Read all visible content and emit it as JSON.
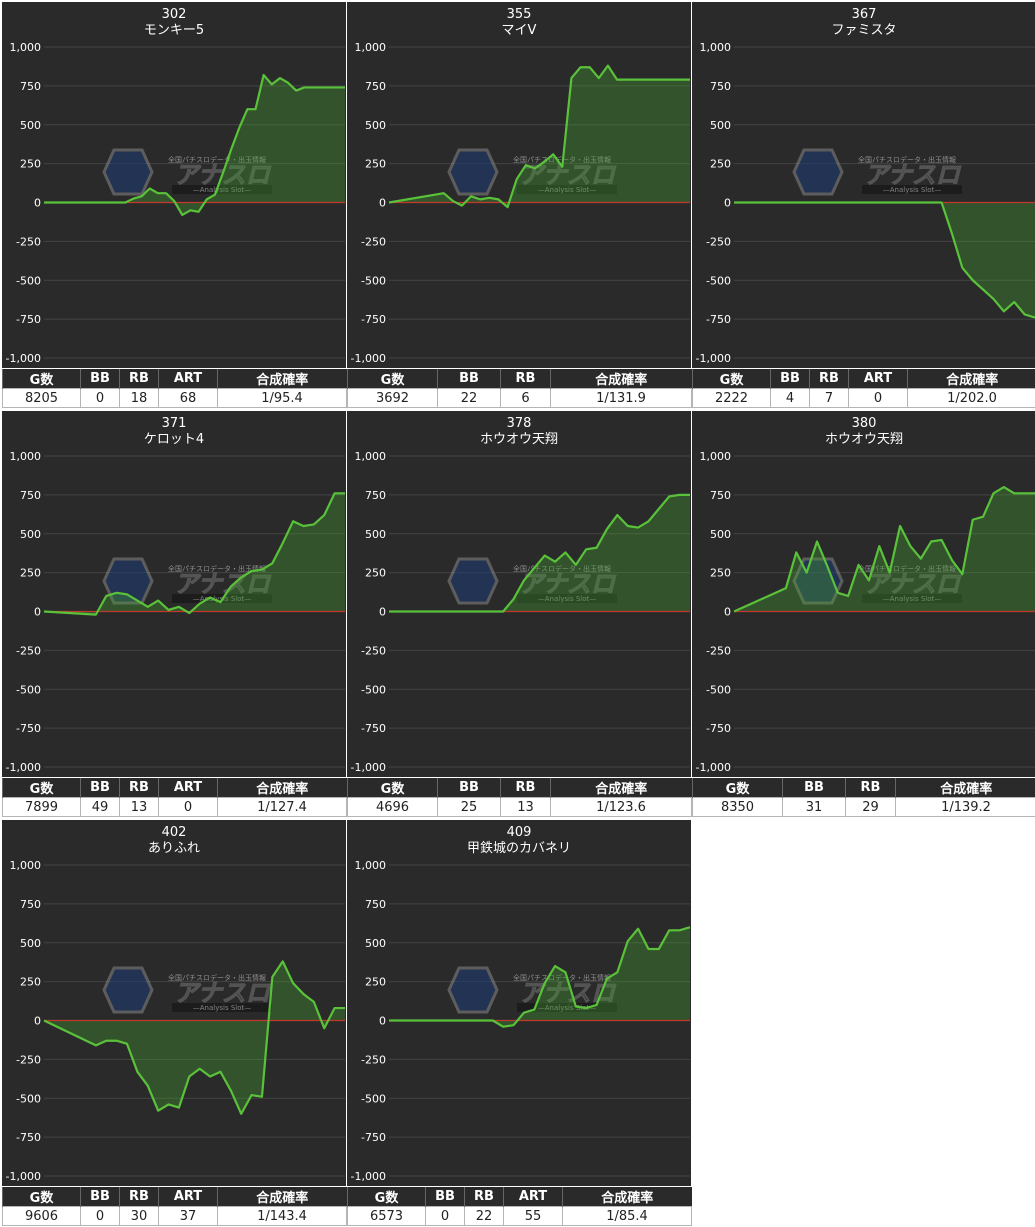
{
  "y_ticks": [
    "1,000",
    "750",
    "500",
    "250",
    "0",
    "-250",
    "-500",
    "-750",
    "-1,000"
  ],
  "watermark": {
    "sub": "全国パチスロデータ・出玉情報",
    "main": "アナスロ",
    "tag": "—Analysis Slot—"
  },
  "colors": {
    "panel_bg": "#2a2a2a",
    "line": "#5ac23a",
    "fill": "rgba(70,160,50,0.35)",
    "zero_line": "#c0392b",
    "grid": "#444444"
  },
  "machines": [
    {
      "number": "302",
      "name": "モンキー5",
      "stat_headers": [
        "G数",
        "BB",
        "RB",
        "ART",
        "合成確率"
      ],
      "stat_values": [
        "8205",
        "0",
        "18",
        "68",
        "1/95.4"
      ],
      "chart_data": {
        "type": "area",
        "ylim": [
          -1000,
          1000
        ],
        "x": [
          0,
          2,
          4,
          6,
          8,
          10,
          11,
          12,
          13,
          14,
          15,
          16,
          17,
          18,
          19,
          20,
          21,
          22,
          23,
          24,
          25,
          26,
          27,
          28,
          29,
          30,
          31,
          32,
          33,
          34,
          35,
          36,
          37
        ],
        "y": [
          0,
          0,
          0,
          0,
          0,
          0,
          25,
          40,
          90,
          60,
          60,
          10,
          -80,
          -50,
          -60,
          20,
          50,
          190,
          340,
          480,
          600,
          600,
          820,
          760,
          800,
          770,
          720,
          740,
          740,
          740,
          740,
          740,
          740
        ]
      }
    },
    {
      "number": "355",
      "name": "マイV",
      "stat_headers": [
        "G数",
        "BB",
        "RB",
        "合成確率"
      ],
      "stat_values": [
        "3692",
        "22",
        "6",
        "1/131.9"
      ],
      "chart_data": {
        "type": "area",
        "ylim": [
          -1000,
          1000
        ],
        "x": [
          0,
          6,
          7,
          8,
          9,
          10,
          11,
          12,
          13,
          14,
          15,
          16,
          17,
          18,
          19,
          20,
          21,
          22,
          23,
          24,
          25,
          26,
          27,
          28,
          29,
          30,
          31,
          32,
          33
        ],
        "y": [
          0,
          60,
          10,
          -20,
          40,
          20,
          30,
          20,
          -30,
          150,
          240,
          220,
          260,
          310,
          230,
          800,
          870,
          870,
          800,
          880,
          790,
          790,
          790,
          790,
          790,
          790,
          790,
          790,
          790
        ]
      }
    },
    {
      "number": "367",
      "name": "ファミスタ",
      "stat_headers": [
        "G数",
        "BB",
        "RB",
        "ART",
        "合成確率"
      ],
      "stat_values": [
        "2222",
        "4",
        "7",
        "0",
        "1/202.0"
      ],
      "chart_data": {
        "type": "area",
        "ylim": [
          -1000,
          1000
        ],
        "x": [
          0,
          20,
          21,
          22,
          23,
          24,
          25,
          26,
          27,
          28,
          29
        ],
        "y": [
          0,
          0,
          -200,
          -420,
          -500,
          -560,
          -620,
          -700,
          -640,
          -720,
          -740
        ]
      }
    },
    {
      "number": "371",
      "name": "ケロット4",
      "stat_headers": [
        "G数",
        "BB",
        "RB",
        "ART",
        "合成確率"
      ],
      "stat_values": [
        "7899",
        "49",
        "13",
        "0",
        "1/127.4"
      ],
      "chart_data": {
        "type": "area",
        "ylim": [
          -1000,
          1000
        ],
        "x": [
          0,
          5,
          6,
          7,
          8,
          9,
          10,
          11,
          12,
          13,
          14,
          15,
          16,
          17,
          18,
          19,
          20,
          21,
          22,
          23,
          24,
          25,
          26,
          27,
          28,
          29
        ],
        "y": [
          0,
          -20,
          100,
          120,
          110,
          70,
          30,
          70,
          10,
          30,
          -10,
          50,
          90,
          60,
          160,
          220,
          260,
          270,
          310,
          440,
          580,
          550,
          560,
          620,
          760,
          760
        ]
      }
    },
    {
      "number": "378",
      "name": "ホウオウ天翔",
      "stat_headers": [
        "G数",
        "BB",
        "RB",
        "合成確率"
      ],
      "stat_values": [
        "4696",
        "25",
        "13",
        "1/123.6"
      ],
      "chart_data": {
        "type": "area",
        "ylim": [
          -1000,
          1000
        ],
        "x": [
          0,
          11,
          12,
          13,
          14,
          15,
          16,
          17,
          18,
          19,
          20,
          21,
          22,
          23,
          24,
          25,
          26,
          27,
          28,
          29
        ],
        "y": [
          0,
          0,
          80,
          200,
          280,
          360,
          320,
          380,
          300,
          400,
          410,
          530,
          620,
          550,
          540,
          580,
          660,
          740,
          750,
          750
        ]
      }
    },
    {
      "number": "380",
      "name": "ホウオウ天翔",
      "stat_headers": [
        "G数",
        "BB",
        "RB",
        "合成確率"
      ],
      "stat_values": [
        "8350",
        "31",
        "29",
        "1/139.2"
      ],
      "chart_data": {
        "type": "area",
        "ylim": [
          -1000,
          1000
        ],
        "x": [
          0,
          5,
          6,
          7,
          8,
          9,
          10,
          11,
          12,
          13,
          14,
          15,
          16,
          17,
          18,
          19,
          20,
          21,
          22,
          23,
          24,
          25,
          26,
          27,
          28,
          29
        ],
        "y": [
          0,
          150,
          380,
          250,
          450,
          290,
          120,
          100,
          300,
          200,
          420,
          250,
          550,
          420,
          340,
          450,
          460,
          330,
          240,
          590,
          610,
          760,
          800,
          760,
          760,
          760
        ]
      }
    },
    {
      "number": "402",
      "name": "ありふれ",
      "stat_headers": [
        "G数",
        "BB",
        "RB",
        "ART",
        "合成確率"
      ],
      "stat_values": [
        "9606",
        "0",
        "30",
        "37",
        "1/143.4"
      ],
      "chart_data": {
        "type": "area",
        "ylim": [
          -1000,
          1000
        ],
        "x": [
          0,
          5,
          6,
          7,
          8,
          9,
          10,
          11,
          12,
          13,
          14,
          15,
          16,
          17,
          18,
          19,
          20,
          21,
          22,
          23,
          24,
          25,
          26,
          27,
          28,
          29
        ],
        "y": [
          0,
          -160,
          -130,
          -130,
          -150,
          -330,
          -420,
          -580,
          -540,
          -560,
          -360,
          -310,
          -360,
          -330,
          -450,
          -600,
          -480,
          -490,
          280,
          380,
          240,
          170,
          120,
          -50,
          80,
          80
        ]
      }
    },
    {
      "number": "409",
      "name": "甲鉄城のカバネリ",
      "stat_headers": [
        "G数",
        "BB",
        "RB",
        "ART",
        "合成確率"
      ],
      "stat_values": [
        "6573",
        "0",
        "22",
        "55",
        "1/85.4"
      ],
      "chart_data": {
        "type": "area",
        "ylim": [
          -1000,
          1000
        ],
        "x": [
          0,
          10,
          11,
          12,
          13,
          14,
          15,
          16,
          17,
          18,
          19,
          20,
          21,
          22,
          23,
          24,
          25,
          26,
          27,
          28,
          29
        ],
        "y": [
          0,
          0,
          -40,
          -30,
          50,
          70,
          240,
          350,
          310,
          90,
          80,
          100,
          270,
          310,
          510,
          590,
          460,
          460,
          580,
          580,
          600
        ]
      }
    }
  ]
}
